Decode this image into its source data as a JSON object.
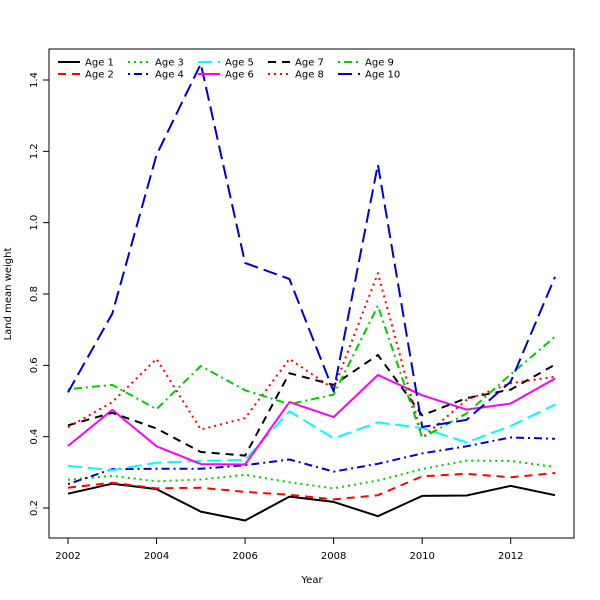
{
  "chart_data": {
    "type": "line",
    "title": "",
    "xlabel": "Year",
    "ylabel": "Land mean weight",
    "xlim": [
      2002,
      2013
    ],
    "ylim": [
      0.15,
      1.45
    ],
    "x_ticks": [
      2002,
      2004,
      2006,
      2008,
      2010,
      2012
    ],
    "y_ticks": [
      0.2,
      0.4,
      0.6,
      0.8,
      1.0,
      1.2,
      1.4
    ],
    "y_tick_labels": [
      "0.2",
      "0.4",
      "0.6",
      "0.8",
      "1.0",
      "1.2",
      "1.4"
    ],
    "grid": false,
    "legend_position": "top-left",
    "x": [
      2002,
      2003,
      2004,
      2005,
      2006,
      2007,
      2008,
      2009,
      2010,
      2011,
      2012,
      2013
    ],
    "series": [
      {
        "name": "Age 1",
        "color": "#000000",
        "dash": "solid",
        "values": [
          0.24,
          0.268,
          0.253,
          0.19,
          0.165,
          0.232,
          0.217,
          0.177,
          0.234,
          0.235,
          0.262,
          0.236
        ]
      },
      {
        "name": "Age 2",
        "color": "#ff0000",
        "dash": "dashed",
        "values": [
          0.257,
          0.271,
          0.255,
          0.257,
          0.245,
          0.237,
          0.224,
          0.236,
          0.289,
          0.296,
          0.286,
          0.298
        ]
      },
      {
        "name": "Age 3",
        "color": "#00cd00",
        "dash": "dotted",
        "values": [
          0.279,
          0.29,
          0.275,
          0.28,
          0.293,
          0.272,
          0.255,
          0.277,
          0.309,
          0.333,
          0.332,
          0.315
        ]
      },
      {
        "name": "Age 4",
        "color": "#0000cd",
        "dash": "dotdash",
        "values": [
          0.267,
          0.309,
          0.31,
          0.31,
          0.32,
          0.336,
          0.302,
          0.324,
          0.353,
          0.373,
          0.398,
          0.394
        ]
      },
      {
        "name": "Age 5",
        "color": "#00ffff",
        "dash": "longdash",
        "values": [
          0.318,
          0.306,
          0.327,
          0.332,
          0.335,
          0.471,
          0.395,
          0.44,
          0.424,
          0.384,
          0.43,
          0.49
        ]
      },
      {
        "name": "Age 6",
        "color": "#ff00ff",
        "dash": "solid",
        "values": [
          0.374,
          0.475,
          0.373,
          0.323,
          0.322,
          0.497,
          0.455,
          0.573,
          0.516,
          0.476,
          0.493,
          0.563
        ]
      },
      {
        "name": "Age 7",
        "color": "#000000",
        "dash": "dashed",
        "values": [
          0.432,
          0.467,
          0.423,
          0.357,
          0.347,
          0.578,
          0.545,
          0.629,
          0.46,
          0.508,
          0.532,
          0.602
        ]
      },
      {
        "name": "Age 8",
        "color": "#ff0000",
        "dash": "dotted",
        "values": [
          0.426,
          0.497,
          0.618,
          0.42,
          0.452,
          0.618,
          0.534,
          0.858,
          0.397,
          0.503,
          0.55,
          0.568
        ]
      },
      {
        "name": "Age 9",
        "color": "#00cd00",
        "dash": "dotdash",
        "values": [
          0.533,
          0.545,
          0.477,
          0.598,
          0.53,
          0.491,
          0.518,
          0.767,
          0.397,
          0.465,
          0.575,
          0.68
        ]
      },
      {
        "name": "Age 10",
        "color": "#0000cd",
        "dash": "longdash",
        "values": [
          0.524,
          0.745,
          1.19,
          1.445,
          0.887,
          0.842,
          0.527,
          1.163,
          0.427,
          0.447,
          0.554,
          0.848
        ]
      }
    ]
  }
}
